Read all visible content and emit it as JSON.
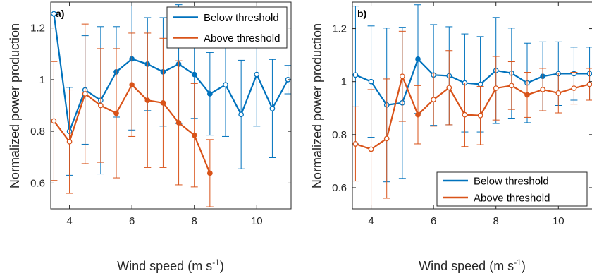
{
  "chart_data": [
    {
      "type": "line",
      "panel_label": "a)",
      "xlabel": "Wind speed (m s",
      "xlabel_sup": "-1",
      "xlabel_close": ")",
      "ylabel": "Normalized power production",
      "xlim": [
        3.4,
        11.1
      ],
      "ylim": [
        0.5,
        1.3
      ],
      "xticks": [
        "4",
        "6",
        "8",
        "10"
      ],
      "yticks": [
        "0.6",
        "0.8",
        "1",
        "1.2"
      ],
      "legend_position": "top-right",
      "grid": false,
      "series": [
        {
          "name": "Below threshold",
          "color": "#0072BD",
          "x": [
            3.5,
            4,
            4.5,
            5,
            5.5,
            6,
            6.5,
            7,
            7.5,
            8,
            8.5,
            9,
            9.5,
            10,
            10.5,
            11
          ],
          "y": [
            1.255,
            0.8,
            0.96,
            0.92,
            1.03,
            1.08,
            1.06,
            1.03,
            1.06,
            1.02,
            0.945,
            0.98,
            0.865,
            1.02,
            0.888,
            1.0
          ],
          "err": [
            0.0,
            0.17,
            0.21,
            0.285,
            0.175,
            0.275,
            0.18,
            0.21,
            0.23,
            0.17,
            0.16,
            0.2,
            0.21,
            0.2,
            0.19,
            0.055
          ],
          "filled": [
            false,
            false,
            false,
            false,
            true,
            true,
            true,
            true,
            true,
            true,
            true,
            false,
            false,
            false,
            false,
            false
          ]
        },
        {
          "name": "Above threshold",
          "color": "#D95319",
          "x": [
            3.5,
            4,
            4.5,
            5,
            5.5,
            6,
            6.5,
            7,
            7.5,
            8,
            8.5
          ],
          "y": [
            0.84,
            0.76,
            0.945,
            0.9,
            0.87,
            0.98,
            0.92,
            0.91,
            0.833,
            0.785,
            0.638
          ],
          "err": [
            0.23,
            0.2,
            0.27,
            0.22,
            0.25,
            0.2,
            0.26,
            0.25,
            0.24,
            0.2,
            0.13
          ],
          "filled": [
            false,
            false,
            false,
            false,
            true,
            true,
            true,
            true,
            true,
            true,
            true
          ]
        }
      ]
    },
    {
      "type": "line",
      "panel_label": "b)",
      "xlabel": "Wind speed (m s",
      "xlabel_sup": "-1",
      "xlabel_close": ")",
      "ylabel": "Normalized power production",
      "xlim": [
        3.4,
        11.1
      ],
      "ylim": [
        0.52,
        1.3
      ],
      "xticks": [
        "4",
        "6",
        "8",
        "10"
      ],
      "yticks": [
        "0.6",
        "0.8",
        "1",
        "1.2"
      ],
      "legend_position": "bottom-right",
      "grid": false,
      "series": [
        {
          "name": "Below threshold",
          "color": "#0072BD",
          "x": [
            3.5,
            4,
            4.5,
            5,
            5.5,
            6,
            6.5,
            7,
            7.5,
            8,
            8.5,
            9,
            9.5,
            10,
            10.5,
            11
          ],
          "y": [
            1.025,
            1.0,
            0.912,
            0.92,
            1.085,
            1.025,
            1.022,
            0.995,
            0.99,
            1.042,
            1.032,
            0.995,
            1.02,
            1.03,
            1.03,
            1.03
          ],
          "err": [
            0.26,
            0.21,
            0.29,
            0.285,
            0.205,
            0.19,
            0.185,
            0.185,
            0.18,
            0.2,
            0.17,
            0.15,
            0.13,
            0.12,
            0.1,
            0.1
          ],
          "filled": [
            false,
            false,
            false,
            false,
            true,
            false,
            false,
            false,
            false,
            false,
            false,
            false,
            true,
            false,
            false,
            false
          ]
        },
        {
          "name": "Above threshold",
          "color": "#D95319",
          "x": [
            3.5,
            4,
            4.5,
            5,
            5.5,
            6,
            6.5,
            7,
            7.5,
            8,
            8.5,
            9,
            9.5,
            10,
            10.5,
            11
          ],
          "y": [
            0.765,
            0.745,
            0.785,
            1.02,
            0.875,
            0.932,
            0.977,
            0.875,
            0.872,
            0.975,
            0.985,
            0.95,
            0.97,
            0.957,
            0.975,
            0.99
          ],
          "err": [
            0.14,
            0.225,
            0.225,
            0.17,
            0.11,
            0.1,
            0.14,
            0.12,
            0.11,
            0.12,
            0.09,
            0.085,
            0.08,
            0.075,
            0.06,
            0.06
          ],
          "filled": [
            false,
            false,
            false,
            false,
            true,
            false,
            false,
            false,
            false,
            false,
            false,
            true,
            false,
            false,
            false,
            false
          ]
        }
      ]
    }
  ]
}
